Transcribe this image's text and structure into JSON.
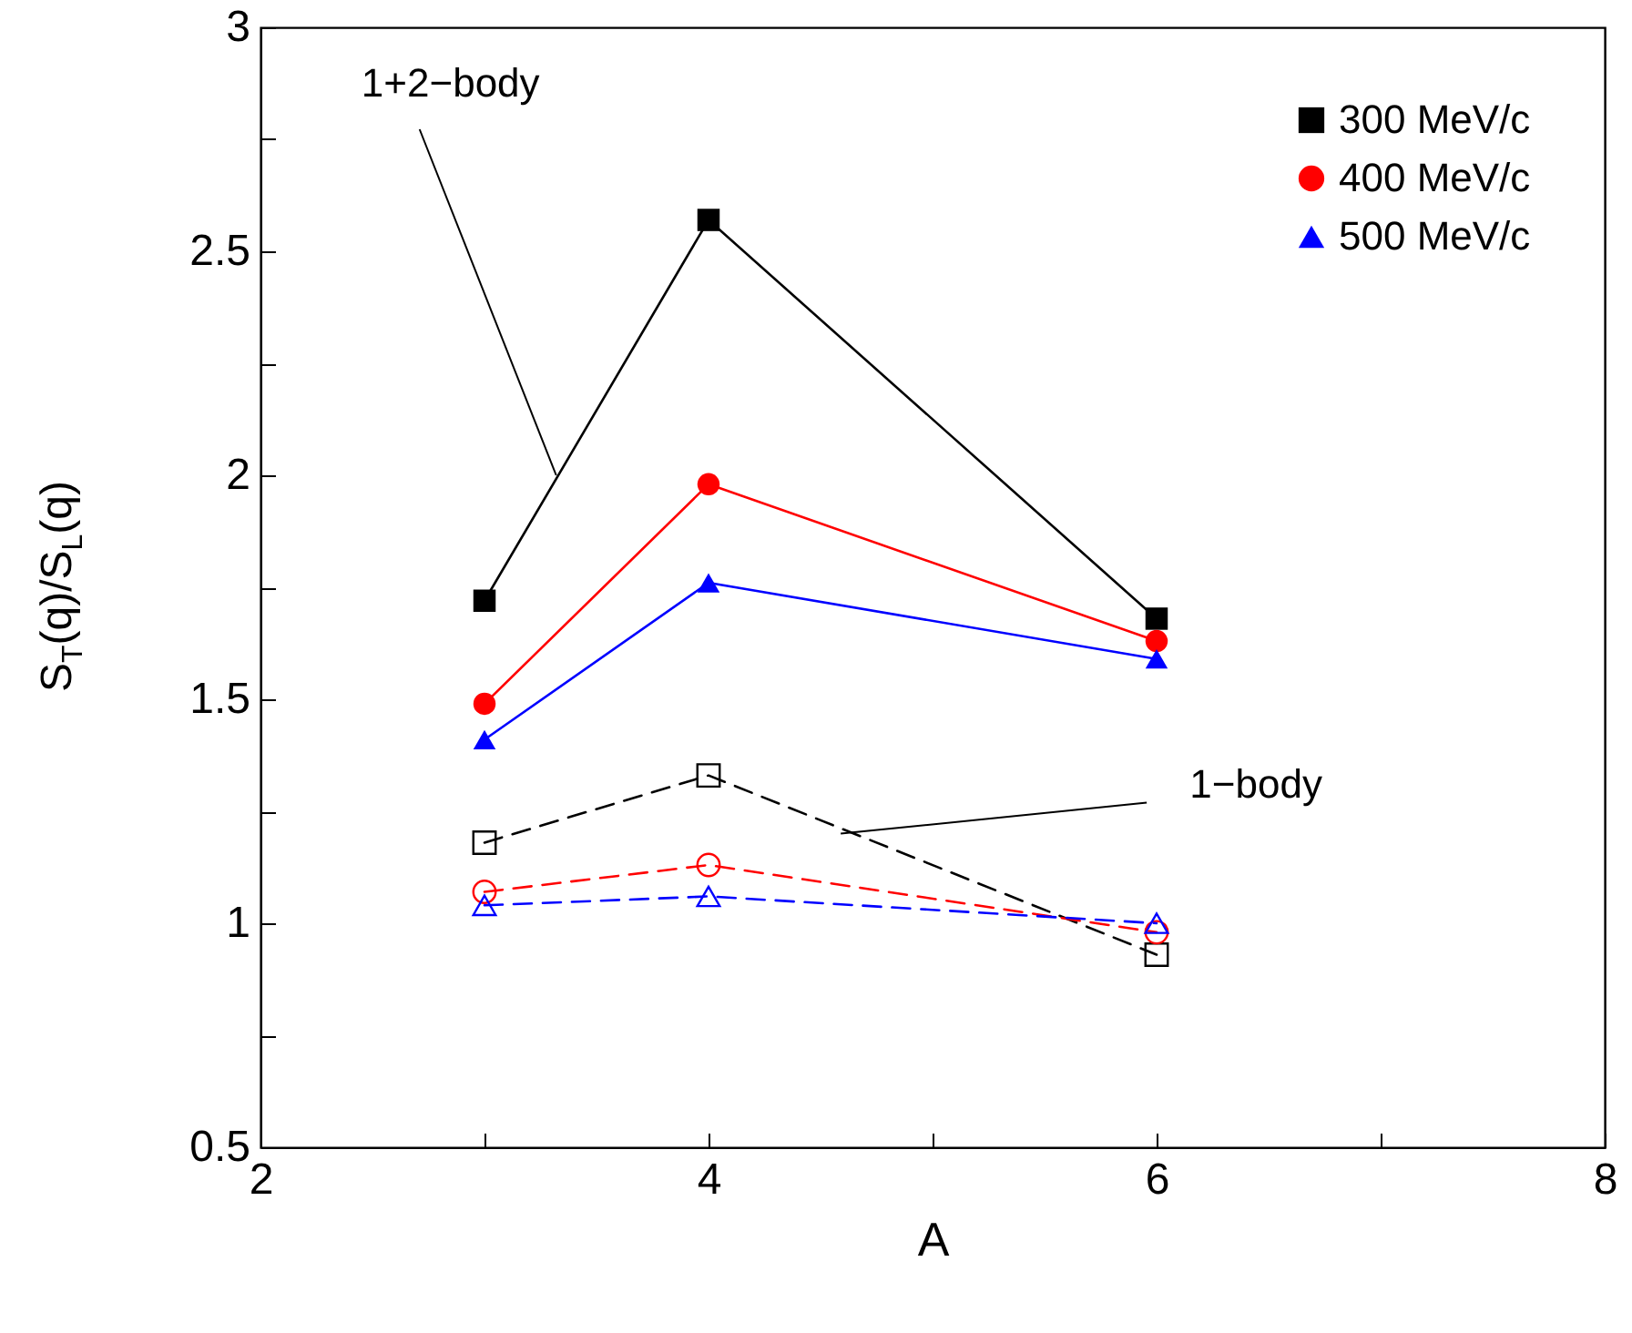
{
  "chart_data": {
    "type": "line",
    "xlabel": "A",
    "ylabel": "S$_{T}$(q)/S$_{L}$(q)",
    "xlim": [
      2,
      8
    ],
    "xticks": [
      2,
      {
        "value": 3,
        "label": null
      },
      4,
      {
        "value": 5,
        "label": null
      },
      6,
      {
        "value": 7,
        "label": null
      },
      8
    ],
    "ylim": [
      0.5,
      3
    ],
    "yticks": [
      0.5,
      {
        "value": 0.75,
        "label": null
      },
      1,
      {
        "value": 1.25,
        "label": null
      },
      1.5,
      {
        "value": 1.75,
        "label": null
      },
      2,
      {
        "value": 2.25,
        "label": null
      },
      2.5,
      {
        "value": 2.75,
        "label": null
      },
      3
    ],
    "grid": false,
    "legend": "top right",
    "x": [
      3,
      4,
      6
    ],
    "series": [
      {
        "name": "300 MeV/c",
        "color": "#000000",
        "marker": "square",
        "line_style": "solid",
        "values": [
          1.72,
          2.57,
          1.68
        ]
      },
      {
        "name": "400 MeV/c",
        "color": "#ff0000",
        "marker": "circle",
        "line_style": "solid",
        "values": [
          1.49,
          1.98,
          1.63
        ]
      },
      {
        "name": "500 MeV/c",
        "color": "#0000ff",
        "marker": "triangle",
        "line_style": "solid",
        "values": [
          1.41,
          1.76,
          1.59
        ]
      },
      {
        "color": "#000000",
        "marker": "square",
        "line_style": "dashed",
        "values": [
          1.18,
          1.33,
          0.93
        ]
      },
      {
        "color": "#ff0000",
        "marker": "circle",
        "line_style": "dashed",
        "values": [
          1.07,
          1.13,
          0.98
        ]
      },
      {
        "color": "#0000ff",
        "marker": "triangle",
        "line_style": "dashed",
        "values": [
          1.04,
          1.06,
          1.0
        ]
      }
    ],
    "annotations": [
      {
        "text": "1+2−body",
        "x": 3.32,
        "y": 2.0
      },
      {
        "text": "1−body",
        "x": 4.59,
        "y": 1.2
      }
    ]
  }
}
